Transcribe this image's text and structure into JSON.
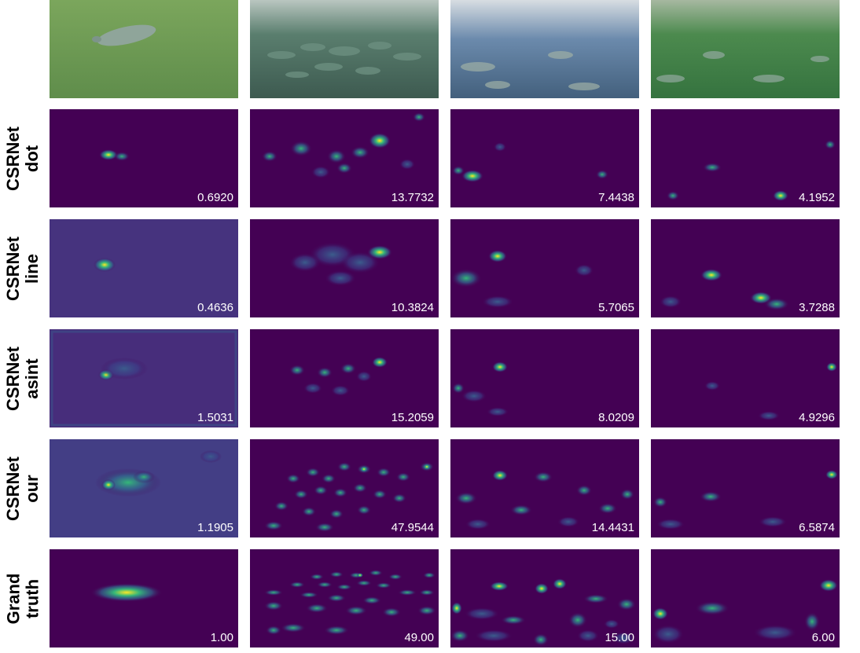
{
  "rows": [
    {
      "label_line1": "",
      "label_line2": ""
    },
    {
      "label_line1": "CSRNet",
      "label_line2": "dot"
    },
    {
      "label_line1": "CSRNet",
      "label_line2": "line"
    },
    {
      "label_line1": "CSRNet",
      "label_line2": "asint"
    },
    {
      "label_line1": "CSRNet",
      "label_line2": "our"
    },
    {
      "label_line1": "Grand",
      "label_line2": "truth"
    }
  ],
  "counts": [
    [
      "0.6920",
      "13.7732",
      "7.4438",
      "4.1952"
    ],
    [
      "0.4636",
      "10.3824",
      "5.7065",
      "3.7288"
    ],
    [
      "1.5031",
      "15.2059",
      "8.0209",
      "4.9296"
    ],
    [
      "1.1905",
      "47.9544",
      "14.4431",
      "6.5874"
    ],
    [
      "1.00",
      "49.00",
      "15.00",
      "6.00"
    ]
  ],
  "colors": {
    "heatmap_bg": "#440154",
    "heatmap_mid": "#31688e",
    "heatmap_high": "#35b779",
    "heatmap_peak": "#fde725",
    "photo1": "#6e9a55",
    "photo2": "#4a6a5a",
    "photo3": "#5a7a9a",
    "photo4": "#3f7a3a"
  },
  "icons": [
    "watermark-logo-icon"
  ]
}
